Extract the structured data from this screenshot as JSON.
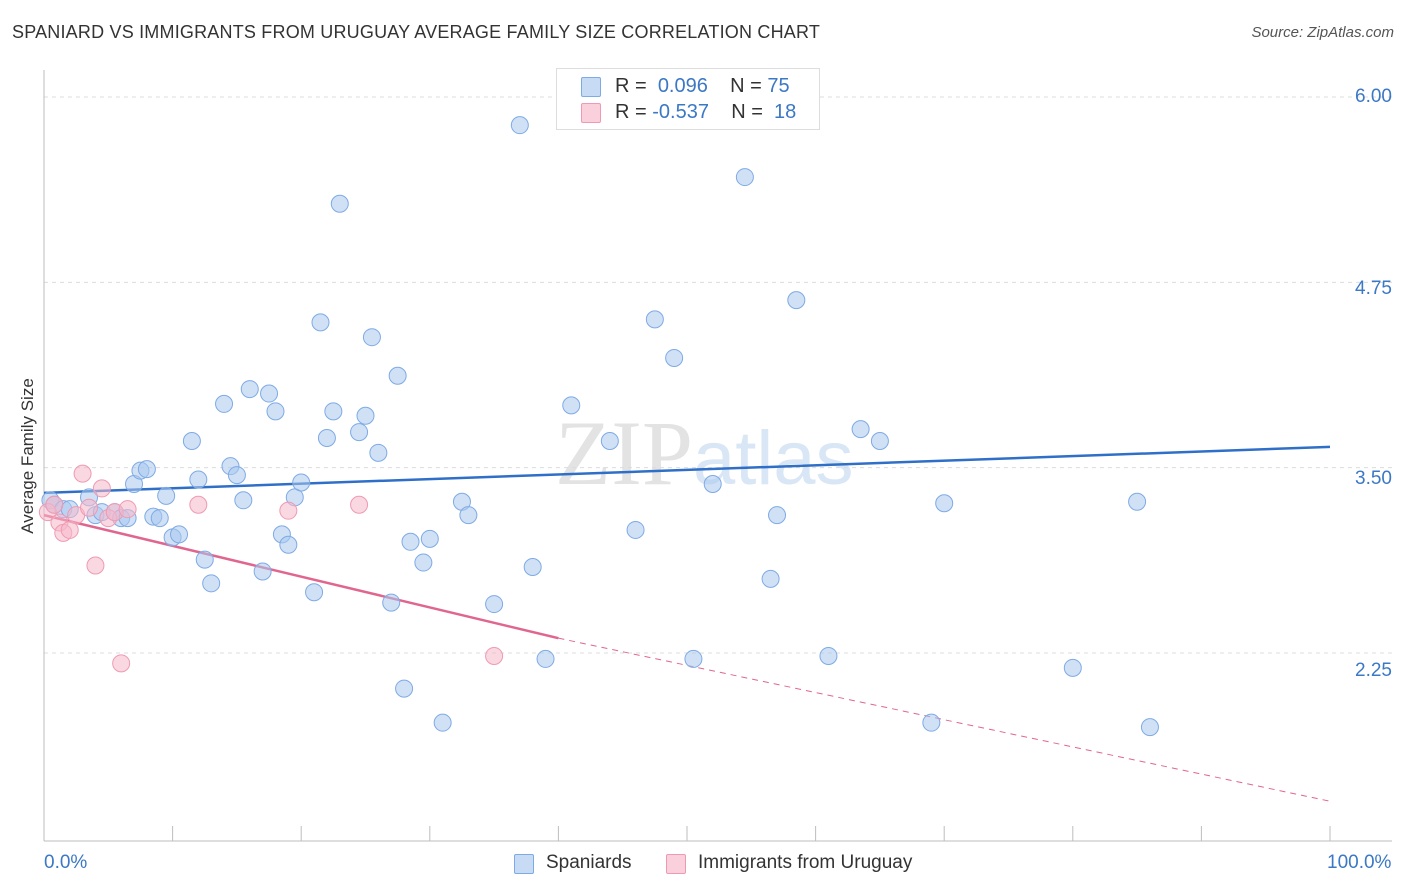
{
  "header": {
    "title": "SPANIARD VS IMMIGRANTS FROM URUGUAY AVERAGE FAMILY SIZE CORRELATION CHART",
    "source": "Source: ZipAtlas.com"
  },
  "watermark": {
    "zip": "ZIP",
    "atlas": "atlas"
  },
  "legend": {
    "rows": [
      {
        "r_label": "R =",
        "r_value": "0.096",
        "n_label": "N =",
        "n_value": "75",
        "color": "#a9c8ef"
      },
      {
        "r_label": "R =",
        "r_value": "-0.537",
        "n_label": "N =",
        "n_value": "18",
        "color": "#f5b8ca"
      }
    ]
  },
  "bottom_legend": {
    "spaniards": "Spaniards",
    "uruguay": "Immigrants from Uruguay"
  },
  "axes": {
    "ylabel": "Average Family Size",
    "y_ticks": [
      "6.00",
      "4.75",
      "3.50",
      "2.25"
    ],
    "x_min_label": "0.0%",
    "x_max_label": "100.0%"
  },
  "chart_data": {
    "type": "scatter",
    "title": "SPANIARD VS IMMIGRANTS FROM URUGUAY AVERAGE FAMILY SIZE CORRELATION CHART",
    "xlabel": "",
    "ylabel": "Average Family Size",
    "xlim": [
      0,
      100
    ],
    "ylim": [
      1.25,
      6.1
    ],
    "y_ticks": [
      2.25,
      3.5,
      4.75,
      6.0
    ],
    "grid": true,
    "legend_position": "top-center",
    "colors": {
      "spaniards": "#a9c8ef",
      "spaniards_line": "#2f6fc8",
      "uruguay": "#f5b8ca",
      "uruguay_line": "#e0668f"
    },
    "series": [
      {
        "name": "Spaniards",
        "x": [
          0.5,
          0.8,
          1.5,
          2.0,
          3.5,
          4.0,
          4.5,
          5.5,
          6.0,
          6.5,
          7.0,
          7.5,
          8.0,
          8.5,
          9.0,
          9.5,
          10.0,
          10.5,
          11.5,
          12.0,
          12.5,
          13.0,
          14.0,
          14.5,
          15.0,
          15.5,
          16.0,
          17.0,
          17.5,
          18.0,
          18.5,
          19.0,
          19.5,
          20.0,
          21.0,
          21.5,
          22.0,
          22.5,
          23.0,
          24.5,
          25.0,
          25.5,
          26.0,
          27.0,
          27.5,
          28.0,
          28.5,
          29.5,
          30.0,
          31.0,
          32.5,
          33.0,
          35.0,
          37.0,
          38.0,
          39.0,
          41.0,
          44.0,
          46.0,
          47.5,
          49.0,
          50.5,
          52.0,
          54.5,
          56.5,
          57.0,
          58.5,
          61.0,
          63.5,
          65.0,
          69.0,
          70.0,
          80.0,
          85.0,
          86.0
        ],
        "y": [
          3.28,
          3.25,
          3.22,
          3.22,
          3.3,
          3.18,
          3.2,
          3.2,
          3.16,
          3.16,
          3.39,
          3.48,
          3.49,
          3.17,
          3.16,
          3.31,
          3.03,
          3.05,
          3.68,
          3.42,
          2.88,
          2.72,
          3.93,
          3.51,
          3.45,
          3.28,
          4.03,
          2.8,
          4.0,
          3.88,
          3.05,
          2.98,
          3.3,
          3.4,
          2.66,
          4.48,
          3.7,
          3.88,
          5.28,
          3.74,
          3.85,
          4.38,
          3.6,
          2.59,
          4.12,
          2.01,
          3.0,
          2.86,
          3.02,
          1.78,
          3.27,
          3.18,
          2.58,
          5.81,
          2.83,
          2.21,
          3.92,
          3.68,
          3.08,
          4.5,
          4.24,
          2.21,
          3.39,
          5.46,
          2.75,
          3.18,
          4.63,
          2.23,
          3.76,
          3.68,
          1.78,
          3.26,
          2.15,
          3.27,
          1.75
        ],
        "fit": {
          "x": [
            0,
            100
          ],
          "y": [
            3.33,
            3.64
          ]
        }
      },
      {
        "name": "Immigrants from Uruguay",
        "x": [
          0.3,
          0.8,
          1.2,
          1.5,
          2.0,
          2.5,
          3.0,
          3.5,
          4.0,
          4.5,
          5.0,
          5.5,
          6.0,
          6.5,
          12.0,
          19.0,
          24.5,
          35.0
        ],
        "y": [
          3.2,
          3.25,
          3.13,
          3.06,
          3.08,
          3.18,
          3.46,
          3.23,
          2.84,
          3.36,
          3.16,
          3.2,
          2.18,
          3.22,
          3.25,
          3.21,
          3.25,
          2.23
        ],
        "fit": {
          "x": [
            0,
            40,
            100
          ],
          "y": [
            3.18,
            2.35,
            1.25
          ]
        }
      }
    ]
  }
}
